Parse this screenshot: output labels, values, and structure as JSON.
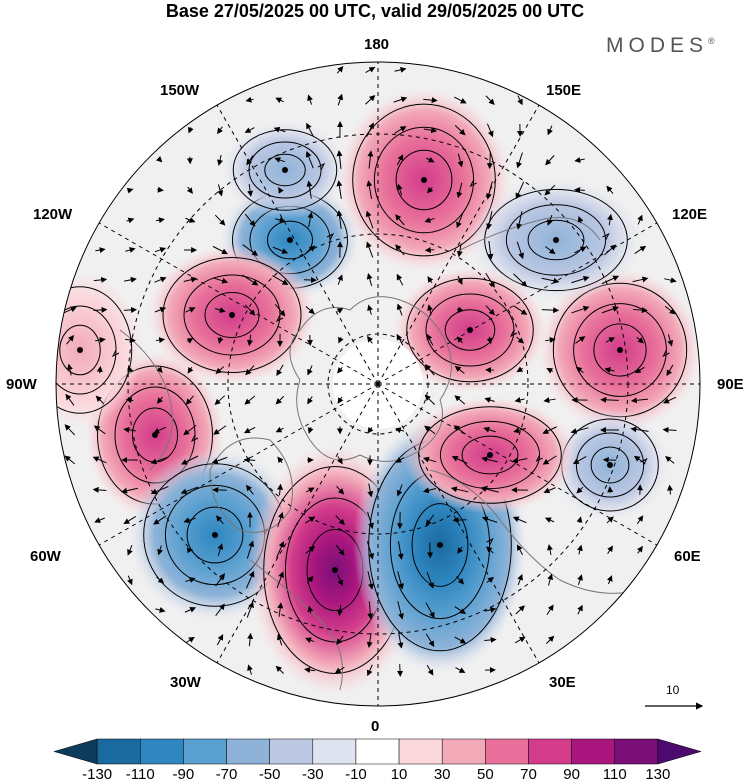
{
  "title": "Base 27/05/2025 00 UTC, valid 29/05/2025 00 UTC",
  "brand": {
    "name": "MODES",
    "mark": "®"
  },
  "longitude_labels": {
    "top": "180",
    "bottom": "0",
    "left": "90W",
    "right": "90E",
    "upper_left_1": "150W",
    "upper_left_2": "120W",
    "lower_left_1": "60W",
    "lower_left_2": "30W",
    "upper_right_1": "150E",
    "upper_right_2": "120E",
    "lower_right_1": "60E",
    "lower_right_2": "30E"
  },
  "reference_vector": {
    "label": "10"
  },
  "colorbar": {
    "ticks": [
      "-130",
      "-110",
      "-90",
      "-70",
      "-50",
      "-30",
      "-10",
      "10",
      "30",
      "50",
      "70",
      "90",
      "110",
      "130"
    ],
    "colors": [
      "#0d3b5c",
      "#1a6aa0",
      "#2f86c0",
      "#5aa0d0",
      "#8fb3d8",
      "#bdc8e3",
      "#dfe2ef",
      "#ffffff",
      "#fbd8dd",
      "#f2a9b8",
      "#e8709a",
      "#d23c8a",
      "#a8167e",
      "#7a0f78",
      "#4d0a6e"
    ]
  },
  "anomaly_centers": [
    {
      "sign": "positive",
      "level": 90
    },
    {
      "sign": "negative",
      "level": -70
    },
    {
      "sign": "positive",
      "level": 70
    },
    {
      "sign": "negative",
      "level": -50
    },
    {
      "sign": "positive",
      "level": 70
    },
    {
      "sign": "negative",
      "level": -50
    },
    {
      "sign": "positive",
      "level": 70
    },
    {
      "sign": "positive",
      "level": 50
    },
    {
      "sign": "negative",
      "level": -90
    },
    {
      "sign": "positive",
      "level": 110
    },
    {
      "sign": "negative",
      "level": -110
    },
    {
      "sign": "negative",
      "level": -50
    },
    {
      "sign": "positive",
      "level": 70
    },
    {
      "sign": "positive",
      "level": 30
    }
  ]
}
